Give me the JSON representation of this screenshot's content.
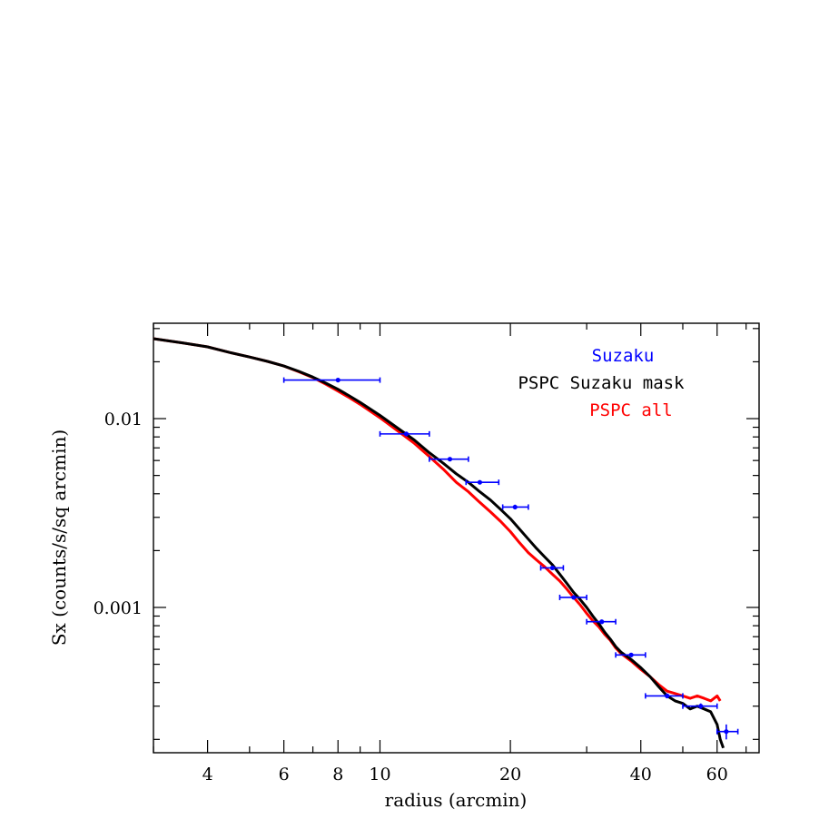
{
  "chart_data": {
    "type": "line",
    "title": "",
    "xlabel": "radius (arcmin)",
    "ylabel": "Sx (counts/s/sq arcmin)",
    "x_scale": "log",
    "y_scale": "log",
    "xlim": [
      3,
      75
    ],
    "ylim": [
      0.00017,
      0.032
    ],
    "x_ticks": [
      4,
      6,
      8,
      10,
      20,
      40,
      60
    ],
    "x_tick_labels": [
      "4",
      "6",
      "8",
      "10",
      "20",
      "40",
      "60"
    ],
    "y_ticks": [
      0.01,
      0.001
    ],
    "y_tick_labels": [
      "0.01",
      "0.001"
    ],
    "legend": {
      "placement": "top-right",
      "entries": [
        {
          "label": "Suzaku",
          "color": "#0000ff"
        },
        {
          "label": "PSPC Suzaku mask",
          "color": "#000000"
        },
        {
          "label": "PSPC all",
          "color": "#ff0000"
        }
      ]
    },
    "series": [
      {
        "name": "PSPC all",
        "color": "#ff0000",
        "x": [
          3.0,
          3.5,
          4.0,
          4.5,
          5.0,
          5.5,
          6.0,
          6.5,
          7.0,
          7.5,
          8.0,
          8.5,
          9.0,
          10.0,
          11.0,
          12.0,
          13.0,
          14.0,
          15.0,
          16.0,
          17.0,
          18.0,
          19.0,
          20.0,
          21.0,
          22.0,
          23.0,
          24.0,
          25.0,
          26.0,
          27.0,
          28.0,
          29.0,
          30.0,
          31.0,
          32.0,
          33.0,
          34.0,
          35.0,
          36.0,
          38.0,
          40.0,
          42.0,
          44.0,
          46.0,
          48.0,
          50.0,
          52.0,
          54.0,
          56.0,
          58.0,
          60.0,
          61.0
        ],
        "y": [
          0.0265,
          0.0252,
          0.024,
          0.0224,
          0.0212,
          0.0201,
          0.019,
          0.0177,
          0.0165,
          0.0152,
          0.014,
          0.0129,
          0.0119,
          0.0101,
          0.0086,
          0.0074,
          0.0063,
          0.0054,
          0.0046,
          0.0041,
          0.0036,
          0.0032,
          0.00285,
          0.00252,
          0.0022,
          0.00195,
          0.00178,
          0.00164,
          0.0015,
          0.00138,
          0.00125,
          0.00113,
          0.00103,
          0.00093,
          0.00085,
          0.00079,
          0.00072,
          0.00067,
          0.00061,
          0.00057,
          0.00052,
          0.00047,
          0.00043,
          0.00039,
          0.00036,
          0.00035,
          0.00034,
          0.00033,
          0.00034,
          0.00033,
          0.00032,
          0.00034,
          0.00032
        ]
      },
      {
        "name": "PSPC Suzaku mask",
        "color": "#000000",
        "x": [
          3.0,
          3.5,
          4.0,
          4.5,
          5.0,
          5.5,
          6.0,
          6.5,
          7.0,
          7.5,
          8.0,
          8.5,
          9.0,
          10.0,
          11.0,
          12.0,
          13.0,
          14.0,
          15.0,
          16.0,
          17.0,
          18.0,
          19.0,
          20.0,
          21.0,
          22.0,
          23.0,
          24.0,
          25.0,
          26.0,
          27.0,
          28.0,
          29.0,
          30.0,
          31.0,
          32.0,
          33.0,
          34.0,
          35.0,
          36.0,
          38.0,
          40.0,
          42.0,
          44.0,
          46.0,
          48.0,
          50.0,
          52.0,
          54.0,
          56.0,
          58.0,
          60.0,
          61.0,
          62.0
        ],
        "y": [
          0.0265,
          0.0252,
          0.024,
          0.0224,
          0.0212,
          0.0201,
          0.019,
          0.0178,
          0.0166,
          0.0154,
          0.0143,
          0.0132,
          0.0122,
          0.0104,
          0.0089,
          0.0077,
          0.0066,
          0.0058,
          0.0051,
          0.0046,
          0.0041,
          0.0037,
          0.0033,
          0.00295,
          0.0026,
          0.0023,
          0.00205,
          0.00185,
          0.00168,
          0.0015,
          0.00134,
          0.0012,
          0.0011,
          0.001,
          0.0009,
          0.00082,
          0.00074,
          0.00068,
          0.00062,
          0.00058,
          0.00053,
          0.00048,
          0.00043,
          0.00038,
          0.00034,
          0.00032,
          0.00031,
          0.00029,
          0.0003,
          0.00029,
          0.00028,
          0.00024,
          0.0002,
          0.00018
        ]
      },
      {
        "name": "Suzaku",
        "color": "#0000ff",
        "type": "errorbar",
        "x": [
          8.0,
          11.5,
          14.5,
          17.0,
          20.5,
          25.0,
          28.0,
          32.5,
          38.0,
          46.0,
          55.0,
          63.0
        ],
        "xerr_low": [
          6.0,
          10.0,
          13.0,
          15.8,
          19.2,
          23.5,
          26.0,
          30.0,
          35.0,
          41.0,
          50.0,
          60.0
        ],
        "xerr_high": [
          10.0,
          13.0,
          16.0,
          18.8,
          22.0,
          26.5,
          30.0,
          35.0,
          41.0,
          50.0,
          60.0,
          67.0
        ],
        "yerr_low": [
          0.0159,
          0.0083,
          0.0061,
          0.0046,
          0.0034,
          0.00161,
          0.00112,
          0.00082,
          0.00055,
          0.00033,
          0.00029,
          0.0002
        ],
        "yerr_high": [
          0.0161,
          0.0084,
          0.0062,
          0.0047,
          0.0035,
          0.00163,
          0.00114,
          0.00086,
          0.00057,
          0.00035,
          0.00031,
          0.00024
        ],
        "y": [
          0.016,
          0.0083,
          0.0061,
          0.0046,
          0.0034,
          0.00162,
          0.00113,
          0.00084,
          0.00056,
          0.00034,
          0.0003,
          0.00022
        ]
      }
    ]
  }
}
